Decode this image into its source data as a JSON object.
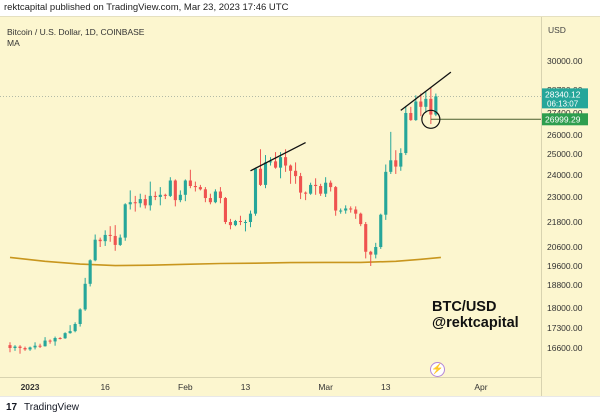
{
  "header": {
    "text": "rektcapital published on TradingView.com, Mar 23, 2023 17:46 UTC"
  },
  "legend": {
    "symbol_line": "Bitcoin / U.S. Dollar, 1D, COINBASE",
    "indicator": "MA"
  },
  "axis": {
    "currency": "USD"
  },
  "watermark": {
    "line1": "BTC/USD",
    "line2": "@rektcapital"
  },
  "footer": {
    "brand": "TradingView",
    "logo_glyph": "17"
  },
  "price_labels": {
    "last_price": "28340.12",
    "countdown": "06:13:07",
    "level": "26999.29"
  },
  "colors": {
    "up": "#26a69a",
    "down": "#ef5350",
    "ma": "#c8961e",
    "level_line": "#4a5e2e",
    "level_label": "#2e9e4f",
    "last_label": "#26a69a",
    "bg": "#fcf6cf"
  },
  "chart_data": {
    "type": "candlestick",
    "symbol": "Bitcoin / U.S. Dollar, 1D, COINBASE",
    "y_ticks": [
      30000,
      28700,
      27400,
      26000,
      25000,
      24000,
      23000,
      21800,
      20600,
      19600,
      18800,
      18000,
      17300,
      16600
    ],
    "y_tick_labels": [
      "30000.00",
      "28700.00",
      "27400.00",
      "26000.00",
      "25000.00",
      "24000.00",
      "23000.00",
      "21800.00",
      "20600.00",
      "19600.00",
      "18800.00",
      "18000.00",
      "17300.00",
      "16600.00"
    ],
    "x_tick_labels": [
      "2023",
      "16",
      "Feb",
      "13",
      "Mar",
      "13",
      "Apr"
    ],
    "x_tick_dates": [
      "2023-01-01",
      "2023-01-16",
      "2023-02-01",
      "2023-02-13",
      "2023-03-01",
      "2023-03-13",
      "2023-04-01"
    ],
    "ylim": [
      16200,
      31500
    ],
    "start_date": "2022-12-28",
    "end_date": "2023-04-06",
    "candles": [
      {
        "date": "2022-12-28",
        "o": 16700,
        "h": 16800,
        "l": 16450,
        "c": 16600
      },
      {
        "date": "2022-12-29",
        "o": 16600,
        "h": 16700,
        "l": 16500,
        "c": 16650
      },
      {
        "date": "2022-12-30",
        "o": 16650,
        "h": 16700,
        "l": 16400,
        "c": 16600
      },
      {
        "date": "2022-12-31",
        "o": 16600,
        "h": 16650,
        "l": 16500,
        "c": 16550
      },
      {
        "date": "2023-01-01",
        "o": 16550,
        "h": 16650,
        "l": 16500,
        "c": 16620
      },
      {
        "date": "2023-01-02",
        "o": 16620,
        "h": 16800,
        "l": 16550,
        "c": 16680
      },
      {
        "date": "2023-01-03",
        "o": 16680,
        "h": 16750,
        "l": 16600,
        "c": 16660
      },
      {
        "date": "2023-01-04",
        "o": 16660,
        "h": 16980,
        "l": 16650,
        "c": 16860
      },
      {
        "date": "2023-01-05",
        "o": 16860,
        "h": 16900,
        "l": 16750,
        "c": 16830
      },
      {
        "date": "2023-01-06",
        "o": 16830,
        "h": 17000,
        "l": 16680,
        "c": 16950
      },
      {
        "date": "2023-01-07",
        "o": 16950,
        "h": 16980,
        "l": 16900,
        "c": 16940
      },
      {
        "date": "2023-01-08",
        "o": 16940,
        "h": 17150,
        "l": 16920,
        "c": 17120
      },
      {
        "date": "2023-01-09",
        "o": 17120,
        "h": 17400,
        "l": 17100,
        "c": 17190
      },
      {
        "date": "2023-01-10",
        "o": 17190,
        "h": 17500,
        "l": 17150,
        "c": 17440
      },
      {
        "date": "2023-01-11",
        "o": 17440,
        "h": 17990,
        "l": 17350,
        "c": 17950
      },
      {
        "date": "2023-01-12",
        "o": 17950,
        "h": 19100,
        "l": 17900,
        "c": 18850
      },
      {
        "date": "2023-01-13",
        "o": 18850,
        "h": 19950,
        "l": 18750,
        "c": 19900
      },
      {
        "date": "2023-01-14",
        "o": 19900,
        "h": 21200,
        "l": 19850,
        "c": 20950
      },
      {
        "date": "2023-01-15",
        "o": 20950,
        "h": 21050,
        "l": 20600,
        "c": 20880
      },
      {
        "date": "2023-01-16",
        "o": 20880,
        "h": 21400,
        "l": 20650,
        "c": 21180
      },
      {
        "date": "2023-01-17",
        "o": 21180,
        "h": 21600,
        "l": 20850,
        "c": 21130
      },
      {
        "date": "2023-01-18",
        "o": 21130,
        "h": 21650,
        "l": 20400,
        "c": 20700
      },
      {
        "date": "2023-01-19",
        "o": 20700,
        "h": 21200,
        "l": 20650,
        "c": 21050
      },
      {
        "date": "2023-01-20",
        "o": 21050,
        "h": 22700,
        "l": 20900,
        "c": 22650
      },
      {
        "date": "2023-01-21",
        "o": 22650,
        "h": 23300,
        "l": 22400,
        "c": 22750
      },
      {
        "date": "2023-01-22",
        "o": 22750,
        "h": 23050,
        "l": 22300,
        "c": 22700
      },
      {
        "date": "2023-01-23",
        "o": 22700,
        "h": 23150,
        "l": 22500,
        "c": 22900
      },
      {
        "date": "2023-01-24",
        "o": 22900,
        "h": 23100,
        "l": 22450,
        "c": 22600
      },
      {
        "date": "2023-01-25",
        "o": 22600,
        "h": 23700,
        "l": 22350,
        "c": 23050
      },
      {
        "date": "2023-01-26",
        "o": 23050,
        "h": 23250,
        "l": 22850,
        "c": 23000
      },
      {
        "date": "2023-01-27",
        "o": 23000,
        "h": 23450,
        "l": 22600,
        "c": 23100
      },
      {
        "date": "2023-01-28",
        "o": 23100,
        "h": 23150,
        "l": 22900,
        "c": 23050
      },
      {
        "date": "2023-01-29",
        "o": 23050,
        "h": 23900,
        "l": 23000,
        "c": 23750
      },
      {
        "date": "2023-01-30",
        "o": 23750,
        "h": 23800,
        "l": 22550,
        "c": 22850
      },
      {
        "date": "2023-01-31",
        "o": 22850,
        "h": 23300,
        "l": 22750,
        "c": 23100
      },
      {
        "date": "2023-02-01",
        "o": 23100,
        "h": 23800,
        "l": 22800,
        "c": 23750
      },
      {
        "date": "2023-02-02",
        "o": 23750,
        "h": 24250,
        "l": 23400,
        "c": 23500
      },
      {
        "date": "2023-02-03",
        "o": 23500,
        "h": 23700,
        "l": 23250,
        "c": 23450
      },
      {
        "date": "2023-02-04",
        "o": 23450,
        "h": 23550,
        "l": 23300,
        "c": 23350
      },
      {
        "date": "2023-02-05",
        "o": 23350,
        "h": 23450,
        "l": 22750,
        "c": 22950
      },
      {
        "date": "2023-02-06",
        "o": 22950,
        "h": 23150,
        "l": 22650,
        "c": 22750
      },
      {
        "date": "2023-02-07",
        "o": 22750,
        "h": 23350,
        "l": 22700,
        "c": 23250
      },
      {
        "date": "2023-02-08",
        "o": 23250,
        "h": 23450,
        "l": 22700,
        "c": 22950
      },
      {
        "date": "2023-02-09",
        "o": 22950,
        "h": 23000,
        "l": 21700,
        "c": 21800
      },
      {
        "date": "2023-02-10",
        "o": 21800,
        "h": 21950,
        "l": 21450,
        "c": 21650
      },
      {
        "date": "2023-02-11",
        "o": 21650,
        "h": 21900,
        "l": 21600,
        "c": 21850
      },
      {
        "date": "2023-02-12",
        "o": 21850,
        "h": 22100,
        "l": 21650,
        "c": 21800
      },
      {
        "date": "2023-02-13",
        "o": 21800,
        "h": 21900,
        "l": 21350,
        "c": 21800
      },
      {
        "date": "2023-02-14",
        "o": 21800,
        "h": 22350,
        "l": 21550,
        "c": 22200
      },
      {
        "date": "2023-02-15",
        "o": 22200,
        "h": 24350,
        "l": 22100,
        "c": 24300
      },
      {
        "date": "2023-02-16",
        "o": 24300,
        "h": 25250,
        "l": 23500,
        "c": 23550
      },
      {
        "date": "2023-02-17",
        "o": 23550,
        "h": 24950,
        "l": 23400,
        "c": 24600
      },
      {
        "date": "2023-02-18",
        "o": 24600,
        "h": 24850,
        "l": 24450,
        "c": 24650
      },
      {
        "date": "2023-02-19",
        "o": 24650,
        "h": 25100,
        "l": 24300,
        "c": 24350
      },
      {
        "date": "2023-02-20",
        "o": 24350,
        "h": 25100,
        "l": 23850,
        "c": 24850
      },
      {
        "date": "2023-02-21",
        "o": 24850,
        "h": 25250,
        "l": 24150,
        "c": 24450
      },
      {
        "date": "2023-02-22",
        "o": 24450,
        "h": 24500,
        "l": 23600,
        "c": 24200
      },
      {
        "date": "2023-02-23",
        "o": 24200,
        "h": 24600,
        "l": 23600,
        "c": 23950
      },
      {
        "date": "2023-02-24",
        "o": 23950,
        "h": 24100,
        "l": 22900,
        "c": 23200
      },
      {
        "date": "2023-02-25",
        "o": 23200,
        "h": 23250,
        "l": 22850,
        "c": 23150
      },
      {
        "date": "2023-02-26",
        "o": 23150,
        "h": 23650,
        "l": 23100,
        "c": 23550
      },
      {
        "date": "2023-02-27",
        "o": 23550,
        "h": 23850,
        "l": 23100,
        "c": 23500
      },
      {
        "date": "2023-02-28",
        "o": 23500,
        "h": 23600,
        "l": 23050,
        "c": 23150
      },
      {
        "date": "2023-03-01",
        "o": 23150,
        "h": 23900,
        "l": 23000,
        "c": 23650
      },
      {
        "date": "2023-03-02",
        "o": 23650,
        "h": 23750,
        "l": 23250,
        "c": 23450
      },
      {
        "date": "2023-03-03",
        "o": 23450,
        "h": 23500,
        "l": 22100,
        "c": 22350
      },
      {
        "date": "2023-03-04",
        "o": 22350,
        "h": 22450,
        "l": 22200,
        "c": 22350
      },
      {
        "date": "2023-03-05",
        "o": 22350,
        "h": 22600,
        "l": 22200,
        "c": 22450
      },
      {
        "date": "2023-03-06",
        "o": 22450,
        "h": 22550,
        "l": 22250,
        "c": 22400
      },
      {
        "date": "2023-03-07",
        "o": 22400,
        "h": 22550,
        "l": 21950,
        "c": 22200
      },
      {
        "date": "2023-03-08",
        "o": 22200,
        "h": 22250,
        "l": 21600,
        "c": 21700
      },
      {
        "date": "2023-03-09",
        "o": 21700,
        "h": 21800,
        "l": 20000,
        "c": 20350
      },
      {
        "date": "2023-03-10",
        "o": 20350,
        "h": 20400,
        "l": 19600,
        "c": 20200
      },
      {
        "date": "2023-03-11",
        "o": 20200,
        "h": 20800,
        "l": 20000,
        "c": 20600
      },
      {
        "date": "2023-03-12",
        "o": 20600,
        "h": 22200,
        "l": 20500,
        "c": 22150
      },
      {
        "date": "2023-03-13",
        "o": 22150,
        "h": 24500,
        "l": 21900,
        "c": 24150
      },
      {
        "date": "2023-03-14",
        "o": 24150,
        "h": 26200,
        "l": 24050,
        "c": 24700
      },
      {
        "date": "2023-03-15",
        "o": 24700,
        "h": 25200,
        "l": 24050,
        "c": 24400
      },
      {
        "date": "2023-03-16",
        "o": 24400,
        "h": 25300,
        "l": 24200,
        "c": 25050
      },
      {
        "date": "2023-03-17",
        "o": 25050,
        "h": 27800,
        "l": 24950,
        "c": 27400
      },
      {
        "date": "2023-03-18",
        "o": 27400,
        "h": 27750,
        "l": 26900,
        "c": 26950
      },
      {
        "date": "2023-03-19",
        "o": 26950,
        "h": 28400,
        "l": 26900,
        "c": 28050
      },
      {
        "date": "2023-03-20",
        "o": 28050,
        "h": 28500,
        "l": 27200,
        "c": 27750
      },
      {
        "date": "2023-03-21",
        "o": 27750,
        "h": 28600,
        "l": 27400,
        "c": 28200
      },
      {
        "date": "2023-03-22",
        "o": 28200,
        "h": 28800,
        "l": 26700,
        "c": 27300
      },
      {
        "date": "2023-03-23",
        "o": 27300,
        "h": 28500,
        "l": 27200,
        "c": 28340.12
      }
    ],
    "moving_average": {
      "name": "MA",
      "points": [
        {
          "date": "2022-12-28",
          "v": 20050
        },
        {
          "date": "2023-01-04",
          "v": 19850
        },
        {
          "date": "2023-01-11",
          "v": 19700
        },
        {
          "date": "2023-01-18",
          "v": 19620
        },
        {
          "date": "2023-01-25",
          "v": 19640
        },
        {
          "date": "2023-02-01",
          "v": 19690
        },
        {
          "date": "2023-02-08",
          "v": 19730
        },
        {
          "date": "2023-02-15",
          "v": 19750
        },
        {
          "date": "2023-02-22",
          "v": 19780
        },
        {
          "date": "2023-03-01",
          "v": 19790
        },
        {
          "date": "2023-03-08",
          "v": 19790
        },
        {
          "date": "2023-03-15",
          "v": 19850
        },
        {
          "date": "2023-03-20",
          "v": 19950
        },
        {
          "date": "2023-03-24",
          "v": 20050
        }
      ]
    },
    "trendlines": [
      {
        "from": {
          "date": "2023-02-14",
          "price": 24200
        },
        "to": {
          "date": "2023-02-25",
          "price": 25600
        }
      },
      {
        "from": {
          "date": "2023-03-16",
          "price": 27550
        },
        "to": {
          "date": "2023-03-26",
          "price": 29500
        }
      }
    ],
    "horizontal_level": {
      "price": 26999.29,
      "from_date": "2023-03-22"
    },
    "circle_marker": {
      "date": "2023-03-22",
      "price": 26999.29
    },
    "last_price": 28340.12
  }
}
